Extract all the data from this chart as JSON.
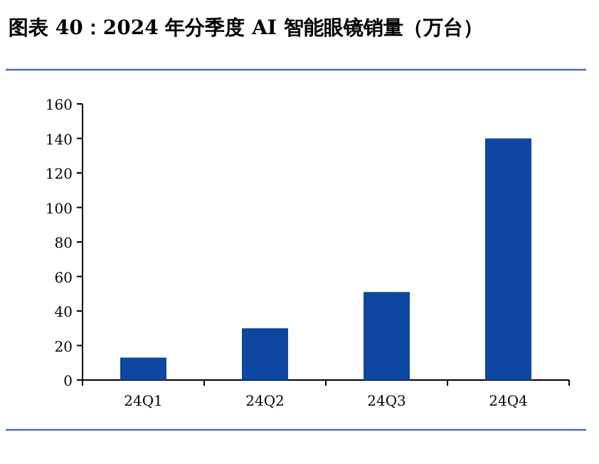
{
  "chart_data": {
    "type": "bar",
    "title": "图表 40：2024 年分季度 AI 智能眼镜销量（万台）",
    "categories": [
      "24Q1",
      "24Q2",
      "24Q3",
      "24Q4"
    ],
    "values": [
      13,
      30,
      51,
      140
    ],
    "color": "#0d47a1",
    "ylim": [
      0,
      160
    ],
    "yticks": [
      0,
      20,
      40,
      60,
      80,
      100,
      120,
      140,
      160
    ],
    "grid": false
  }
}
